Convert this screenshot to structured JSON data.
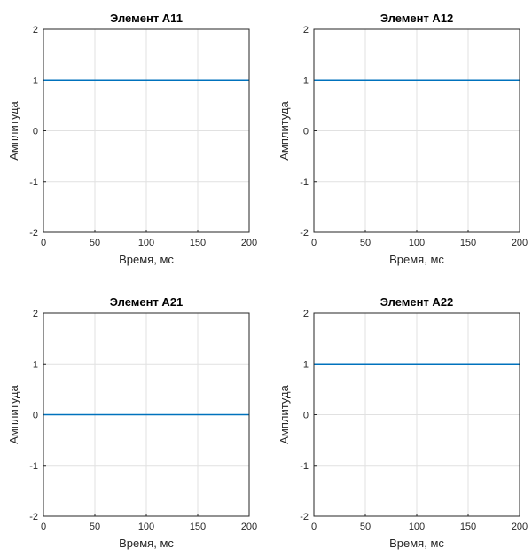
{
  "chart_data": [
    {
      "type": "line",
      "title": "Элемент A11",
      "xlabel": "Время, мс",
      "ylabel": "Амплитуда",
      "xlim": [
        0,
        200
      ],
      "ylim": [
        -2,
        2
      ],
      "xticks": [
        "0",
        "50",
        "100",
        "150",
        "200"
      ],
      "yticks": [
        "-2",
        "-1",
        "0",
        "1",
        "2"
      ],
      "grid": true,
      "series": [
        {
          "x": [
            0,
            200
          ],
          "y": [
            1,
            1
          ],
          "color": "#0072BD"
        }
      ]
    },
    {
      "type": "line",
      "title": "Элемент A12",
      "xlabel": "Время, мс",
      "ylabel": "Амплитуда",
      "xlim": [
        0,
        200
      ],
      "ylim": [
        -2,
        2
      ],
      "xticks": [
        "0",
        "50",
        "100",
        "150",
        "200"
      ],
      "yticks": [
        "-2",
        "-1",
        "0",
        "1",
        "2"
      ],
      "grid": true,
      "series": [
        {
          "x": [
            0,
            200
          ],
          "y": [
            1,
            1
          ],
          "color": "#0072BD"
        }
      ]
    },
    {
      "type": "line",
      "title": "Элемент A21",
      "xlabel": "Время, мс",
      "ylabel": "Амплитуда",
      "xlim": [
        0,
        200
      ],
      "ylim": [
        -2,
        2
      ],
      "xticks": [
        "0",
        "50",
        "100",
        "150",
        "200"
      ],
      "yticks": [
        "-2",
        "-1",
        "0",
        "1",
        "2"
      ],
      "grid": true,
      "series": [
        {
          "x": [
            0,
            200
          ],
          "y": [
            0,
            0
          ],
          "color": "#0072BD"
        }
      ]
    },
    {
      "type": "line",
      "title": "Элемент A22",
      "xlabel": "Время, мс",
      "ylabel": "Амплитуда",
      "xlim": [
        0,
        200
      ],
      "ylim": [
        -2,
        2
      ],
      "xticks": [
        "0",
        "50",
        "100",
        "150",
        "200"
      ],
      "yticks": [
        "-2",
        "-1",
        "0",
        "1",
        "2"
      ],
      "grid": true,
      "series": [
        {
          "x": [
            0,
            200
          ],
          "y": [
            1,
            1
          ],
          "color": "#0072BD"
        }
      ]
    }
  ]
}
